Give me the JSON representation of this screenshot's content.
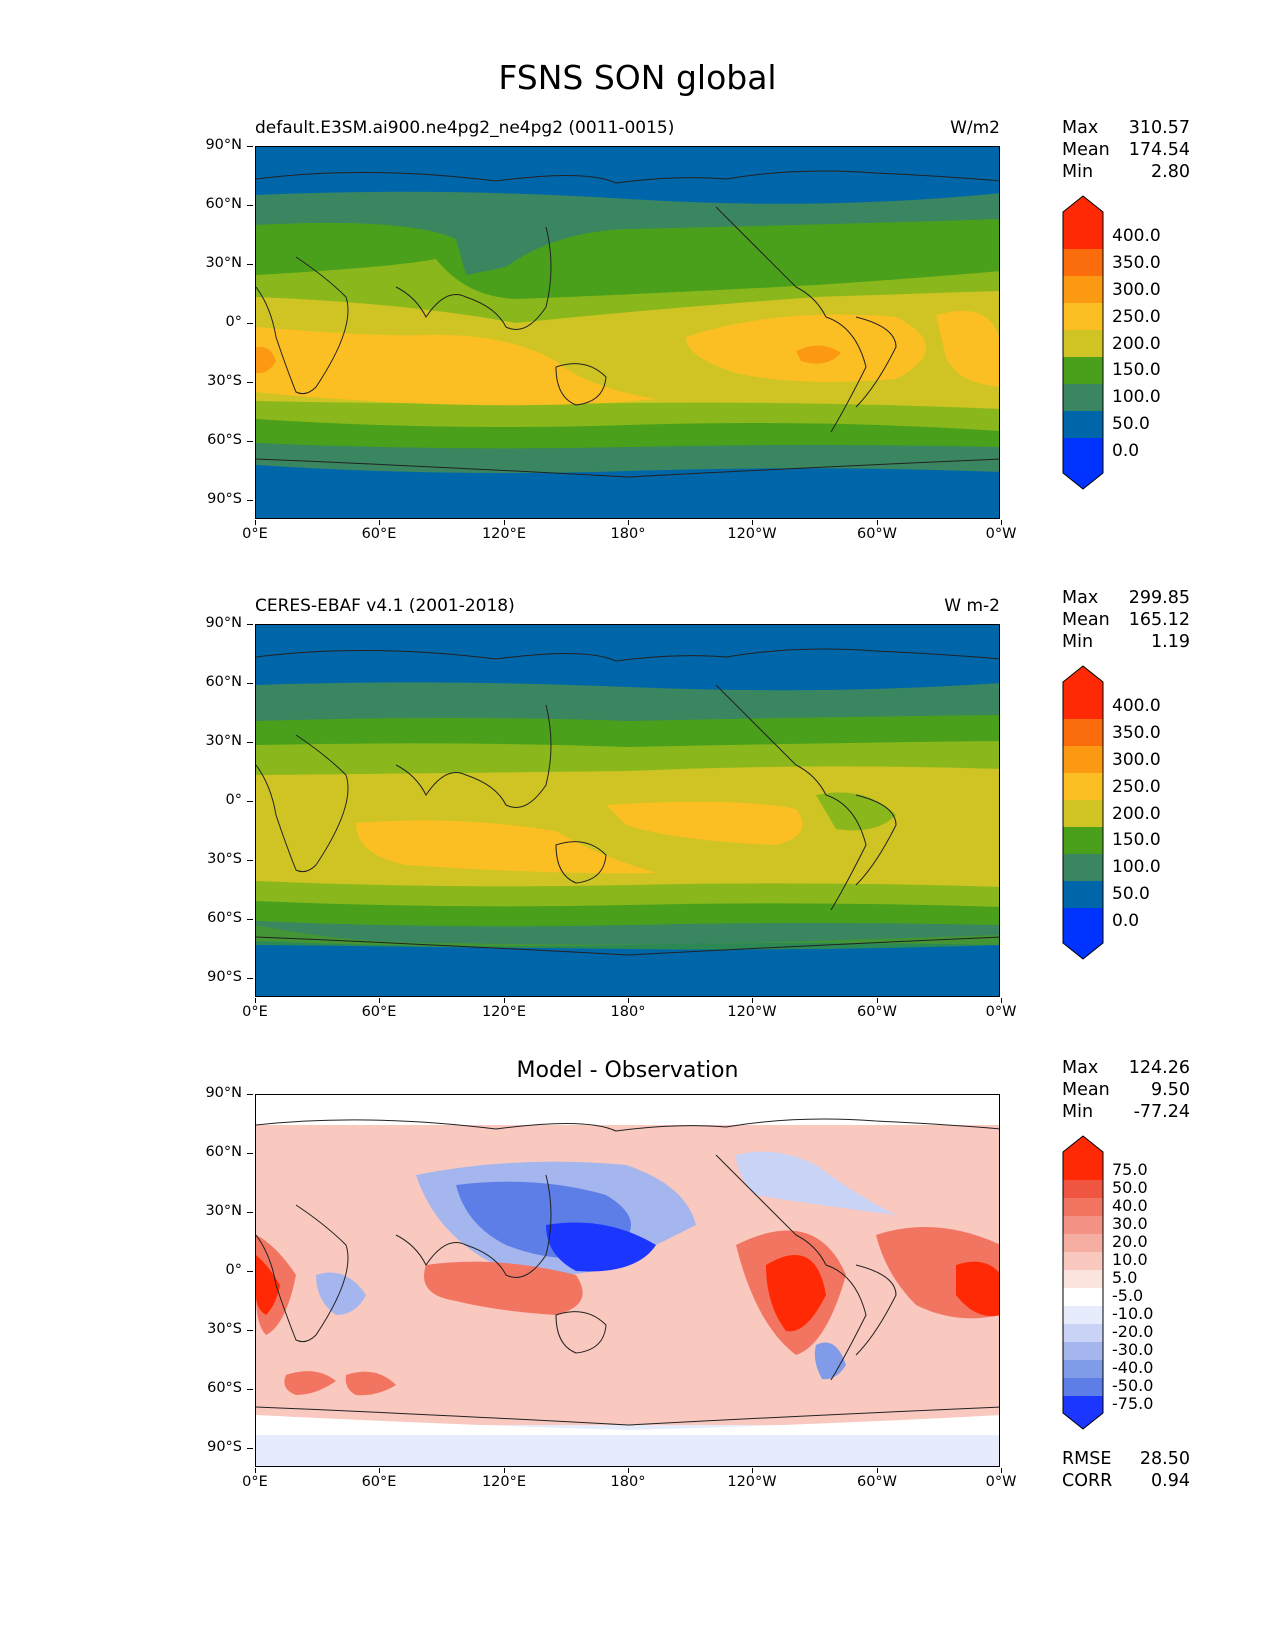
{
  "figure": {
    "title": "FSNS SON global"
  },
  "axes": {
    "yticks": [
      "90°N",
      "60°N",
      "30°N",
      "0°",
      "30°S",
      "60°S",
      "90°S"
    ],
    "xticks": [
      "0°E",
      "60°E",
      "120°E",
      "180°",
      "120°W",
      "60°W",
      "0°W"
    ]
  },
  "panels": [
    {
      "title_left": "default.E3SM.ai900.ne4pg2_ne4pg2 (0011-0015)",
      "title_right": "W/m2",
      "stats": {
        "max_label": "Max",
        "max": "310.57",
        "mean_label": "Mean",
        "mean": "174.54",
        "min_label": "Min",
        "min": "2.80"
      },
      "colorbar_labels": [
        "400.0",
        "350.0",
        "300.0",
        "250.0",
        "200.0",
        "150.0",
        "100.0",
        "50.0",
        "0.0"
      ]
    },
    {
      "title_left": "CERES-EBAF v4.1 (2001-2018)",
      "title_right": "W m-2",
      "stats": {
        "max_label": "Max",
        "max": "299.85",
        "mean_label": "Mean",
        "mean": "165.12",
        "min_label": "Min",
        "min": "1.19"
      },
      "colorbar_labels": [
        "400.0",
        "350.0",
        "300.0",
        "250.0",
        "200.0",
        "150.0",
        "100.0",
        "50.0",
        "0.0"
      ]
    },
    {
      "title_center": "Model - Observation",
      "stats": {
        "max_label": "Max",
        "max": "124.26",
        "mean_label": "Mean",
        "mean": "9.50",
        "min_label": "Min",
        "min": "-77.24"
      },
      "colorbar_labels": [
        "75.0",
        "50.0",
        "40.0",
        "30.0",
        "20.0",
        "10.0",
        "5.0",
        "-5.0",
        "-10.0",
        "-20.0",
        "-30.0",
        "-40.0",
        "-50.0",
        "-75.0"
      ],
      "footer": {
        "rmse_label": "RMSE",
        "rmse": "28.50",
        "corr_label": "CORR",
        "corr": "0.94"
      }
    }
  ],
  "colors": {
    "abs_scale": [
      "#0033ff",
      "#0066aa",
      "#3a8660",
      "#4aa01a",
      "#8ab81c",
      "#cfc423",
      "#fbbf24",
      "#fb9a12",
      "#fb6d0c",
      "#ff2a05"
    ],
    "diff_scale": [
      "#1a36ff",
      "#3b5ef0",
      "#5c7ee6",
      "#809be8",
      "#a5b6ef",
      "#c9d3f6",
      "#e6ecfb",
      "#ffffff",
      "#fbe3de",
      "#f9c8bf",
      "#f6aea3",
      "#f49385",
      "#f27562",
      "#ef5540",
      "#ff2a05"
    ],
    "land_outline": "#222222"
  }
}
